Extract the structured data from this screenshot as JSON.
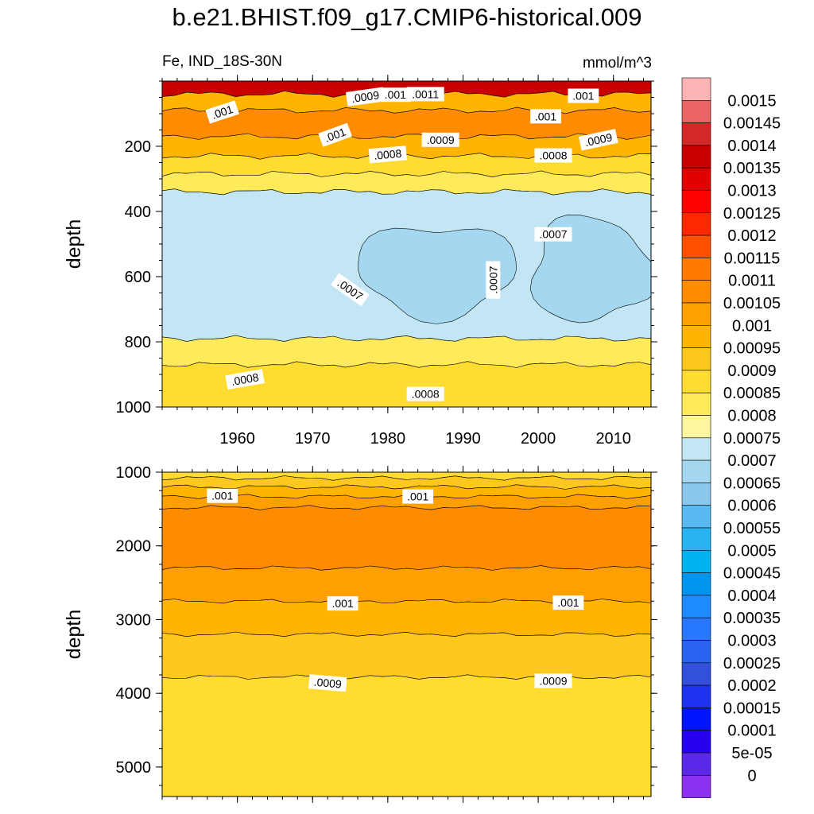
{
  "title": "b.e21.BHIST.f09_g17.CMIP6-historical.009",
  "chart_data": {
    "type": "heatmap",
    "variable": "Fe",
    "region": "IND_18S-30N",
    "units": "mmol/m^3",
    "panels": [
      {
        "name": "upper",
        "ylabel": "depth",
        "ylim": [
          0,
          1000
        ],
        "yticks": [
          "200",
          "400",
          "600",
          "800",
          "1000"
        ],
        "yticks_values": [
          200,
          400,
          600,
          800,
          1000
        ],
        "xlim": [
          1950,
          2015
        ],
        "xticks": [
          "1960",
          "1970",
          "1980",
          "1990",
          "2000",
          "2010"
        ],
        "xticks_values": [
          1960,
          1970,
          1980,
          1990,
          2000,
          2010
        ],
        "bands": [
          {
            "top": 0,
            "bottom": 40,
            "value": 0.00135
          },
          {
            "top": 40,
            "bottom": 90,
            "value": 0.00095
          },
          {
            "top": 90,
            "bottom": 170,
            "value": 0.00105
          },
          {
            "top": 170,
            "bottom": 230,
            "value": 0.00095
          },
          {
            "top": 230,
            "bottom": 285,
            "value": 0.00085
          },
          {
            "top": 285,
            "bottom": 340,
            "value": 0.0008
          },
          {
            "top": 340,
            "bottom": 790,
            "value": 0.0007
          },
          {
            "top": 790,
            "bottom": 870,
            "value": 0.0008
          },
          {
            "top": 870,
            "bottom": 1000,
            "value": 0.00085
          }
        ],
        "patches": [
          {
            "x0": 1976,
            "x1": 1997,
            "y0": 440,
            "y1": 720,
            "value": 0.00065
          },
          {
            "x0": 1999,
            "x1": 2015,
            "y0": 420,
            "y1": 740,
            "value": 0.00065
          }
        ],
        "contour_labels": [
          {
            "text": ".001",
            "x": 1958,
            "y": 95,
            "angle": -18
          },
          {
            "text": ".0009",
            "x": 1977,
            "y": 48,
            "angle": -8
          },
          {
            "text": ".001",
            "x": 1981,
            "y": 42,
            "angle": 0
          },
          {
            "text": ".0011",
            "x": 1985,
            "y": 40,
            "angle": 0
          },
          {
            "text": ".001",
            "x": 2006,
            "y": 45,
            "angle": 0
          },
          {
            "text": ".001",
            "x": 2001,
            "y": 108,
            "angle": 0
          },
          {
            "text": ".001",
            "x": 1973,
            "y": 165,
            "angle": -20
          },
          {
            "text": ".0009",
            "x": 1987,
            "y": 180,
            "angle": 0
          },
          {
            "text": ".0009",
            "x": 2008,
            "y": 180,
            "angle": -12
          },
          {
            "text": ".0008",
            "x": 1980,
            "y": 225,
            "angle": -5
          },
          {
            "text": ".0008",
            "x": 2002,
            "y": 228,
            "angle": 0
          },
          {
            "text": ".0007",
            "x": 2002,
            "y": 470,
            "angle": 0
          },
          {
            "text": ".0007",
            "x": 1975,
            "y": 640,
            "angle": 35
          },
          {
            "text": ".0007",
            "x": 1994,
            "y": 610,
            "angle": -90
          },
          {
            "text": ".0008",
            "x": 1961,
            "y": 915,
            "angle": -10
          },
          {
            "text": ".0008",
            "x": 1985,
            "y": 960,
            "angle": 0
          }
        ]
      },
      {
        "name": "lower",
        "ylabel": "depth",
        "ylim": [
          1000,
          5400
        ],
        "yticks": [
          "1000",
          "2000",
          "3000",
          "4000",
          "5000"
        ],
        "yticks_values": [
          1000,
          2000,
          3000,
          4000,
          5000
        ],
        "xlim": [
          1950,
          2015
        ],
        "bands": [
          {
            "top": 1000,
            "bottom": 1080,
            "value": 0.00085
          },
          {
            "top": 1080,
            "bottom": 1200,
            "value": 0.0009
          },
          {
            "top": 1200,
            "bottom": 1330,
            "value": 0.00095
          },
          {
            "top": 1330,
            "bottom": 1480,
            "value": 0.001
          },
          {
            "top": 1480,
            "bottom": 2300,
            "value": 0.00105
          },
          {
            "top": 2300,
            "bottom": 2750,
            "value": 0.001
          },
          {
            "top": 2750,
            "bottom": 3200,
            "value": 0.00095
          },
          {
            "top": 3200,
            "bottom": 3780,
            "value": 0.0009
          },
          {
            "top": 3780,
            "bottom": 5400,
            "value": 0.00085
          }
        ],
        "contour_labels": [
          {
            "text": ".001",
            "x": 1958,
            "y": 1320,
            "angle": 0
          },
          {
            "text": ".001",
            "x": 1984,
            "y": 1330,
            "angle": 0
          },
          {
            "text": ".001",
            "x": 1974,
            "y": 2780,
            "angle": 0
          },
          {
            "text": ".001",
            "x": 2004,
            "y": 2770,
            "angle": 0
          },
          {
            "text": ".0009",
            "x": 1972,
            "y": 3860,
            "angle": 5
          },
          {
            "text": ".0009",
            "x": 2002,
            "y": 3830,
            "angle": 0
          }
        ]
      }
    ],
    "colorbar": {
      "labels": [
        "0.0015",
        "0.00145",
        "0.0014",
        "0.00135",
        "0.0013",
        "0.00125",
        "0.0012",
        "0.00115",
        "0.0011",
        "0.00105",
        "0.001",
        "0.00095",
        "0.0009",
        "0.00085",
        "0.0008",
        "0.00075",
        "0.0007",
        "0.00065",
        "0.0006",
        "0.00055",
        "0.0005",
        "0.00045",
        "0.0004",
        "0.00035",
        "0.0003",
        "0.00025",
        "0.0002",
        "0.00015",
        "0.0001",
        "5e-05",
        "0"
      ],
      "colors": [
        "#feb4b4",
        "#ea6464",
        "#d22828",
        "#c80000",
        "#e10000",
        "#ff0000",
        "#ff2800",
        "#ff5000",
        "#ff7800",
        "#ff8c00",
        "#ffa000",
        "#ffb400",
        "#ffc81e",
        "#ffdc32",
        "#ffeb5a",
        "#fff5a0",
        "#c3e6f5",
        "#a5d7f0",
        "#8cc8ee",
        "#5ab9f0",
        "#28b4f0",
        "#00b4f0",
        "#0096f0",
        "#1e8cff",
        "#2878ff",
        "#2864f0",
        "#3250dc",
        "#1e32f0",
        "#0014ff",
        "#2800f0",
        "#5a28e6",
        "#8c32f0"
      ]
    }
  }
}
